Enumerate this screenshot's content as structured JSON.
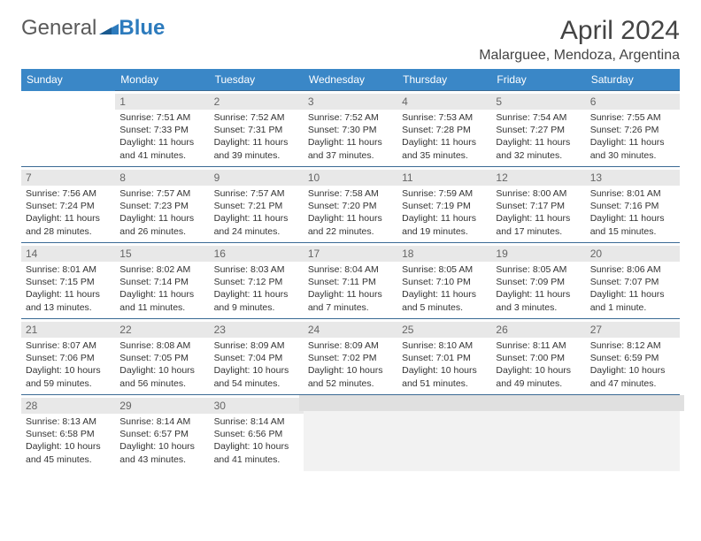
{
  "brand": {
    "part1": "General",
    "part2": "Blue"
  },
  "title": "April 2024",
  "location": "Malarguee, Mendoza, Argentina",
  "colors": {
    "header_bg": "#3a87c7",
    "header_text": "#ffffff",
    "daynum_bg": "#e8e8e8",
    "border": "#3a6a94",
    "logo_gray": "#5a5a5a",
    "logo_blue": "#2d7bbd",
    "text": "#333333"
  },
  "weekdays": [
    "Sunday",
    "Monday",
    "Tuesday",
    "Wednesday",
    "Thursday",
    "Friday",
    "Saturday"
  ],
  "days": {
    "1": {
      "sunrise": "7:51 AM",
      "sunset": "7:33 PM",
      "daylight": "11 hours and 41 minutes."
    },
    "2": {
      "sunrise": "7:52 AM",
      "sunset": "7:31 PM",
      "daylight": "11 hours and 39 minutes."
    },
    "3": {
      "sunrise": "7:52 AM",
      "sunset": "7:30 PM",
      "daylight": "11 hours and 37 minutes."
    },
    "4": {
      "sunrise": "7:53 AM",
      "sunset": "7:28 PM",
      "daylight": "11 hours and 35 minutes."
    },
    "5": {
      "sunrise": "7:54 AM",
      "sunset": "7:27 PM",
      "daylight": "11 hours and 32 minutes."
    },
    "6": {
      "sunrise": "7:55 AM",
      "sunset": "7:26 PM",
      "daylight": "11 hours and 30 minutes."
    },
    "7": {
      "sunrise": "7:56 AM",
      "sunset": "7:24 PM",
      "daylight": "11 hours and 28 minutes."
    },
    "8": {
      "sunrise": "7:57 AM",
      "sunset": "7:23 PM",
      "daylight": "11 hours and 26 minutes."
    },
    "9": {
      "sunrise": "7:57 AM",
      "sunset": "7:21 PM",
      "daylight": "11 hours and 24 minutes."
    },
    "10": {
      "sunrise": "7:58 AM",
      "sunset": "7:20 PM",
      "daylight": "11 hours and 22 minutes."
    },
    "11": {
      "sunrise": "7:59 AM",
      "sunset": "7:19 PM",
      "daylight": "11 hours and 19 minutes."
    },
    "12": {
      "sunrise": "8:00 AM",
      "sunset": "7:17 PM",
      "daylight": "11 hours and 17 minutes."
    },
    "13": {
      "sunrise": "8:01 AM",
      "sunset": "7:16 PM",
      "daylight": "11 hours and 15 minutes."
    },
    "14": {
      "sunrise": "8:01 AM",
      "sunset": "7:15 PM",
      "daylight": "11 hours and 13 minutes."
    },
    "15": {
      "sunrise": "8:02 AM",
      "sunset": "7:14 PM",
      "daylight": "11 hours and 11 minutes."
    },
    "16": {
      "sunrise": "8:03 AM",
      "sunset": "7:12 PM",
      "daylight": "11 hours and 9 minutes."
    },
    "17": {
      "sunrise": "8:04 AM",
      "sunset": "7:11 PM",
      "daylight": "11 hours and 7 minutes."
    },
    "18": {
      "sunrise": "8:05 AM",
      "sunset": "7:10 PM",
      "daylight": "11 hours and 5 minutes."
    },
    "19": {
      "sunrise": "8:05 AM",
      "sunset": "7:09 PM",
      "daylight": "11 hours and 3 minutes."
    },
    "20": {
      "sunrise": "8:06 AM",
      "sunset": "7:07 PM",
      "daylight": "11 hours and 1 minute."
    },
    "21": {
      "sunrise": "8:07 AM",
      "sunset": "7:06 PM",
      "daylight": "10 hours and 59 minutes."
    },
    "22": {
      "sunrise": "8:08 AM",
      "sunset": "7:05 PM",
      "daylight": "10 hours and 56 minutes."
    },
    "23": {
      "sunrise": "8:09 AM",
      "sunset": "7:04 PM",
      "daylight": "10 hours and 54 minutes."
    },
    "24": {
      "sunrise": "8:09 AM",
      "sunset": "7:02 PM",
      "daylight": "10 hours and 52 minutes."
    },
    "25": {
      "sunrise": "8:10 AM",
      "sunset": "7:01 PM",
      "daylight": "10 hours and 51 minutes."
    },
    "26": {
      "sunrise": "8:11 AM",
      "sunset": "7:00 PM",
      "daylight": "10 hours and 49 minutes."
    },
    "27": {
      "sunrise": "8:12 AM",
      "sunset": "6:59 PM",
      "daylight": "10 hours and 47 minutes."
    },
    "28": {
      "sunrise": "8:13 AM",
      "sunset": "6:58 PM",
      "daylight": "10 hours and 45 minutes."
    },
    "29": {
      "sunrise": "8:14 AM",
      "sunset": "6:57 PM",
      "daylight": "10 hours and 43 minutes."
    },
    "30": {
      "sunrise": "8:14 AM",
      "sunset": "6:56 PM",
      "daylight": "10 hours and 41 minutes."
    }
  },
  "labels": {
    "sunrise": "Sunrise:",
    "sunset": "Sunset:",
    "daylight": "Daylight:"
  },
  "layout": {
    "first_weekday_index": 1,
    "num_days": 30,
    "rows": 5,
    "cols": 7
  }
}
